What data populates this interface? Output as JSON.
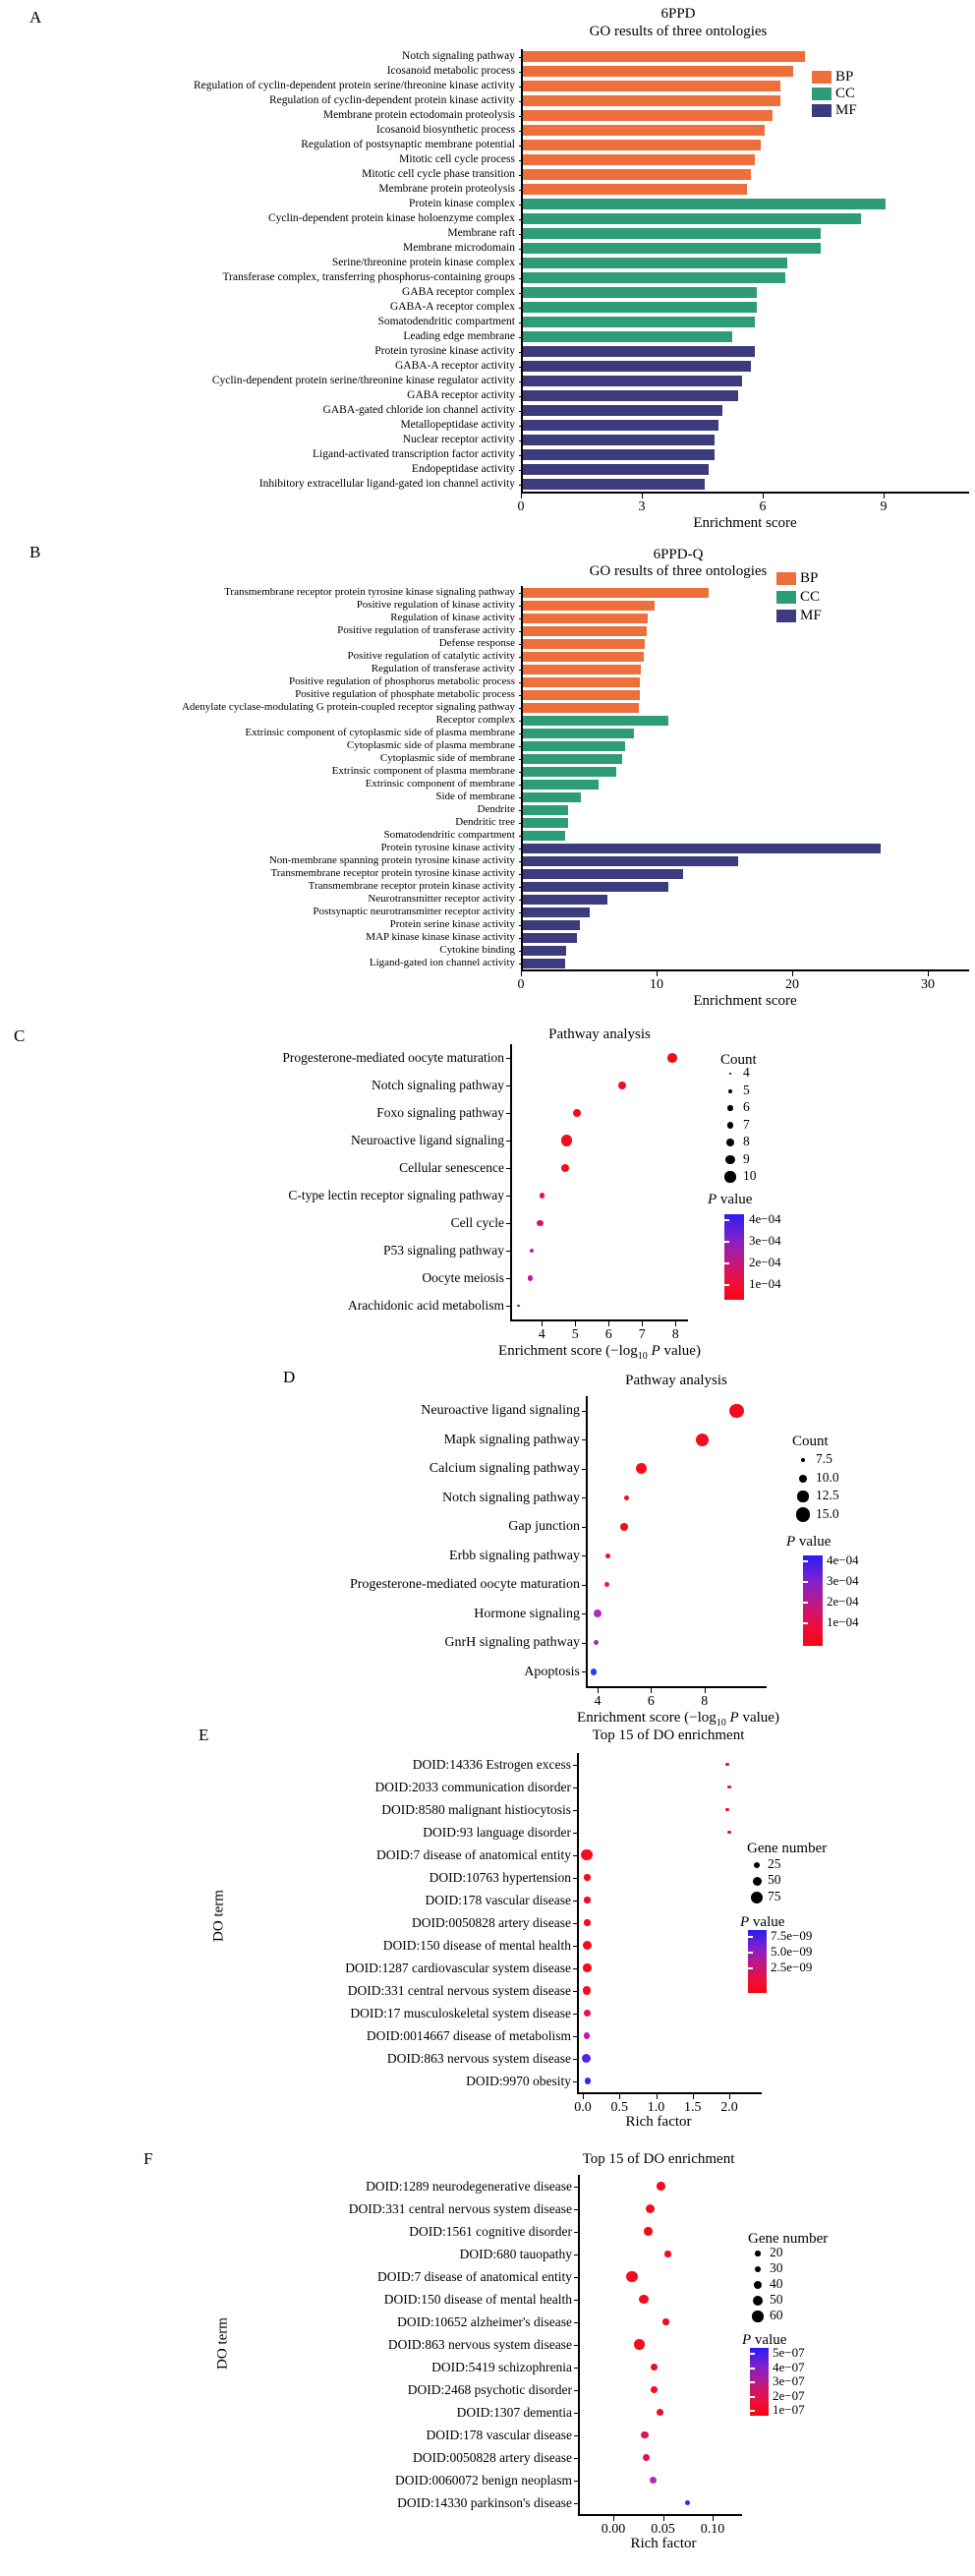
{
  "chart_data": [
    {
      "type": "bar",
      "panel_letter": "A",
      "title": "6PPD",
      "subtitle": "GO results of three ontologies",
      "xlabel": "Enrichment score",
      "xticks": [
        0,
        3,
        6,
        9
      ],
      "xlim": [
        0,
        11.1
      ],
      "legend": [
        {
          "label": "BP",
          "color": "#ED6F3C"
        },
        {
          "label": "CC",
          "color": "#2E9C76"
        },
        {
          "label": "MF",
          "color": "#3B3B7E"
        }
      ],
      "bars": [
        {
          "label": "Notch signaling pathway",
          "value": 7.0,
          "group": "BP"
        },
        {
          "label": "Icosanoid metabolic process",
          "value": 6.7,
          "group": "BP"
        },
        {
          "label": "Regulation of cyclin-dependent protein serine/threonine kinase activity",
          "value": 6.4,
          "group": "BP"
        },
        {
          "label": "Regulation of cyclin-dependent protein kinase activity",
          "value": 6.4,
          "group": "BP"
        },
        {
          "label": "Membrane protein ectodomain proteolysis",
          "value": 6.2,
          "group": "BP"
        },
        {
          "label": "Icosanoid biosynthetic process",
          "value": 6.0,
          "group": "BP"
        },
        {
          "label": "Regulation of postsynaptic membrane potential",
          "value": 5.9,
          "group": "BP"
        },
        {
          "label": "Mitotic cell cycle process",
          "value": 5.75,
          "group": "BP"
        },
        {
          "label": "Mitotic cell cycle phase transition",
          "value": 5.65,
          "group": "BP"
        },
        {
          "label": "Membrane protein proteolysis",
          "value": 5.55,
          "group": "BP"
        },
        {
          "label": "Protein kinase complex",
          "value": 9.0,
          "group": "CC"
        },
        {
          "label": "Cyclin-dependent protein kinase holoenzyme complex",
          "value": 8.4,
          "group": "CC"
        },
        {
          "label": "Membrane raft",
          "value": 7.4,
          "group": "CC"
        },
        {
          "label": "Membrane microdomain",
          "value": 7.4,
          "group": "CC"
        },
        {
          "label": "Serine/threonine protein kinase complex",
          "value": 6.55,
          "group": "CC"
        },
        {
          "label": "Transferase complex, transferring phosphorus-containing groups",
          "value": 6.5,
          "group": "CC"
        },
        {
          "label": "GABA receptor complex",
          "value": 5.8,
          "group": "CC"
        },
        {
          "label": "GABA-A receptor complex",
          "value": 5.8,
          "group": "CC"
        },
        {
          "label": "Somatodendritic compartment",
          "value": 5.75,
          "group": "CC"
        },
        {
          "label": "Leading edge membrane",
          "value": 5.2,
          "group": "CC"
        },
        {
          "label": "Protein tyrosine kinase activity",
          "value": 5.75,
          "group": "MF"
        },
        {
          "label": "GABA-A receptor activity",
          "value": 5.65,
          "group": "MF"
        },
        {
          "label": "Cyclin-dependent protein serine/threonine kinase regulator activity",
          "value": 5.45,
          "group": "MF"
        },
        {
          "label": "GABA receptor activity",
          "value": 5.35,
          "group": "MF"
        },
        {
          "label": "GABA-gated chloride ion channel activity",
          "value": 4.95,
          "group": "MF"
        },
        {
          "label": "Metallopeptidase activity",
          "value": 4.85,
          "group": "MF"
        },
        {
          "label": "Nuclear receptor activity",
          "value": 4.75,
          "group": "MF"
        },
        {
          "label": "Ligand-activated transcription factor activity",
          "value": 4.75,
          "group": "MF"
        },
        {
          "label": "Endopeptidase activity",
          "value": 4.6,
          "group": "MF"
        },
        {
          "label": "Inhibitory extracellular ligand-gated ion channel activity",
          "value": 4.5,
          "group": "MF"
        }
      ]
    },
    {
      "type": "bar",
      "panel_letter": "B",
      "title": "6PPD-Q",
      "subtitle": "GO results of three ontologies",
      "xlabel": "Enrichment score",
      "xticks": [
        0,
        10,
        20,
        30
      ],
      "xlim": [
        0,
        33
      ],
      "legend": [
        {
          "label": "BP",
          "color": "#ED6F3C"
        },
        {
          "label": "CC",
          "color": "#2E9C76"
        },
        {
          "label": "MF",
          "color": "#3B3B7E"
        }
      ],
      "bars": [
        {
          "label": "Transmembrane receptor protein tyrosine kinase signaling pathway",
          "value": 13.7,
          "group": "BP"
        },
        {
          "label": "Positive regulation of kinase activity",
          "value": 9.7,
          "group": "BP"
        },
        {
          "label": "Regulation of kinase activity",
          "value": 9.2,
          "group": "BP"
        },
        {
          "label": "Positive regulation of transferase activity",
          "value": 9.1,
          "group": "BP"
        },
        {
          "label": "Defense response",
          "value": 9.0,
          "group": "BP"
        },
        {
          "label": "Positive regulation of catalytic activity",
          "value": 8.9,
          "group": "BP"
        },
        {
          "label": "Regulation of transferase activity",
          "value": 8.7,
          "group": "BP"
        },
        {
          "label": "Positive regulation of phosphorus metabolic process",
          "value": 8.65,
          "group": "BP"
        },
        {
          "label": "Positive regulation of phosphate metabolic process",
          "value": 8.6,
          "group": "BP"
        },
        {
          "label": "Adenylate cyclase-modulating G protein-coupled receptor signaling pathway",
          "value": 8.55,
          "group": "BP"
        },
        {
          "label": "Receptor complex",
          "value": 10.7,
          "group": "CC"
        },
        {
          "label": "Extrinsic component of cytoplasmic side of plasma membrane",
          "value": 8.2,
          "group": "CC"
        },
        {
          "label": "Cytoplasmic side of plasma membrane",
          "value": 7.5,
          "group": "CC"
        },
        {
          "label": "Cytoplasmic side of membrane",
          "value": 7.3,
          "group": "CC"
        },
        {
          "label": "Extrinsic component of plasma membrane",
          "value": 6.9,
          "group": "CC"
        },
        {
          "label": "Extrinsic component of membrane",
          "value": 5.6,
          "group": "CC"
        },
        {
          "label": "Side of membrane",
          "value": 4.3,
          "group": "CC"
        },
        {
          "label": "Dendrite",
          "value": 3.3,
          "group": "CC"
        },
        {
          "label": "Dendritic tree",
          "value": 3.3,
          "group": "CC"
        },
        {
          "label": "Somatodendritic compartment",
          "value": 3.1,
          "group": "CC"
        },
        {
          "label": "Protein tyrosine kinase activity",
          "value": 26.4,
          "group": "MF"
        },
        {
          "label": "Non-membrane spanning protein tyrosine kinase activity",
          "value": 15.9,
          "group": "MF"
        },
        {
          "label": "Transmembrane receptor protein tyrosine kinase activity",
          "value": 11.8,
          "group": "MF"
        },
        {
          "label": "Transmembrane receptor protein kinase activity",
          "value": 10.7,
          "group": "MF"
        },
        {
          "label": "Neurotransmitter receptor activity",
          "value": 6.2,
          "group": "MF"
        },
        {
          "label": "Postsynaptic neurotransmitter receptor activity",
          "value": 4.9,
          "group": "MF"
        },
        {
          "label": "Protein serine kinase activity",
          "value": 4.2,
          "group": "MF"
        },
        {
          "label": "MAP kinase kinase kinase activity",
          "value": 4.0,
          "group": "MF"
        },
        {
          "label": "Cytokine binding",
          "value": 3.2,
          "group": "MF"
        },
        {
          "label": "Ligand-gated ion channel activity",
          "value": 3.1,
          "group": "MF"
        }
      ]
    },
    {
      "type": "scatter",
      "panel_letter": "C",
      "title": "Pathway analysis",
      "xlabel_pre": "Enrichment score (−log",
      "xlabel_sub": "10",
      "xlabel_p": " P",
      "xlabel_end": " value)",
      "xticks": [
        "4",
        "5",
        "6",
        "7",
        "8"
      ],
      "xlim": [
        3.05,
        8.35
      ],
      "count_legend": {
        "title": "Count",
        "values": [
          "4",
          "5",
          "6",
          "7",
          "8",
          "9",
          "10"
        ]
      },
      "pvalue_legend": {
        "title_p": "P",
        "title_rest": " value",
        "ticks": [
          "4e−04",
          "3e−04",
          "2e−04",
          "1e−04"
        ]
      },
      "points": [
        {
          "label": "Progesterone-mediated oocyte maturation",
          "x": 7.9,
          "count": 9,
          "color": "#F20D1E"
        },
        {
          "label": "Notch signaling pathway",
          "x": 6.4,
          "count": 8,
          "color": "#F20D1E"
        },
        {
          "label": "Foxo signaling pathway",
          "x": 5.05,
          "count": 8,
          "color": "#F20D1E"
        },
        {
          "label": "Neuroactive ligand signaling",
          "x": 4.75,
          "count": 10,
          "color": "#F20D1E"
        },
        {
          "label": "Cellular senescence",
          "x": 4.7,
          "count": 8,
          "color": "#F20D1E"
        },
        {
          "label": "C-type lectin receptor signaling pathway",
          "x": 4.0,
          "count": 6,
          "color": "#E31260"
        },
        {
          "label": "Cell cycle",
          "x": 3.95,
          "count": 7,
          "color": "#E31260"
        },
        {
          "label": "P53 signaling pathway",
          "x": 3.7,
          "count": 5,
          "color": "#C417A4"
        },
        {
          "label": "Oocyte meiosis",
          "x": 3.65,
          "count": 6,
          "color": "#C417A4"
        },
        {
          "label": "Arachidonic acid metabolism",
          "x": 3.3,
          "count": 4,
          "color": "#2A2CF0"
        }
      ]
    },
    {
      "type": "scatter",
      "panel_letter": "D",
      "title": "Pathway analysis",
      "xlabel_pre": "Enrichment score (−log",
      "xlabel_sub": "10",
      "xlabel_p": " P",
      "xlabel_end": " value)",
      "xticks": [
        "4",
        "6",
        "8"
      ],
      "xlim": [
        3.56,
        10.3
      ],
      "count_legend": {
        "title": "Count",
        "values": [
          "7.5",
          "10.0",
          "12.5",
          "15.0"
        ]
      },
      "pvalue_legend": {
        "title_p": "P",
        "title_rest": " value",
        "ticks": [
          "4e−04",
          "3e−04",
          "2e−04",
          "1e−04"
        ]
      },
      "points": [
        {
          "label": "Neuroactive ligand signaling",
          "x": 9.2,
          "count": 15,
          "color": "#F20D1E"
        },
        {
          "label": "Mapk signaling pathway",
          "x": 7.9,
          "count": 14,
          "color": "#F20D1E"
        },
        {
          "label": "Calcium signaling pathway",
          "x": 5.65,
          "count": 12.5,
          "color": "#F20D1E"
        },
        {
          "label": "Notch signaling pathway",
          "x": 5.1,
          "count": 7.5,
          "color": "#F20D1E"
        },
        {
          "label": "Gap junction",
          "x": 5.0,
          "count": 10,
          "color": "#F20D1E"
        },
        {
          "label": "Erbb signaling pathway",
          "x": 4.4,
          "count": 7.5,
          "color": "#F20D1E"
        },
        {
          "label": "Progesterone-mediated oocyte maturation",
          "x": 4.35,
          "count": 7.5,
          "color": "#EE1550"
        },
        {
          "label": "Hormone signaling",
          "x": 4.0,
          "count": 10,
          "color": "#AF2ABE"
        },
        {
          "label": "GnrH signaling pathway",
          "x": 3.93,
          "count": 7.5,
          "color": "#A82BC2"
        },
        {
          "label": "Apoptosis",
          "x": 3.85,
          "count": 9,
          "color": "#2741EB"
        }
      ]
    },
    {
      "type": "scatter",
      "panel_letter": "E",
      "title": "Top 15 of DO enrichment",
      "ylabel": "DO term",
      "xlabel": "Rich factor",
      "xticks": [
        "0.0",
        "0.5",
        "1.0",
        "1.5",
        "2.0"
      ],
      "xlim": [
        -0.08,
        2.45
      ],
      "gene_legend": {
        "title": "Gene number",
        "values": [
          "25",
          "50",
          "75"
        ]
      },
      "pvalue_legend": {
        "title_p": "P",
        "title_rest": " value",
        "ticks": [
          "7.5e−09",
          "5.0e−09",
          "2.5e−09"
        ]
      },
      "points": [
        {
          "label": "DOID:14336 Estrogen excess",
          "x": 1.97,
          "genes": 5,
          "color": "#F20D1E"
        },
        {
          "label": "DOID:2033 communication disorder",
          "x": 2.0,
          "genes": 5,
          "color": "#F20D1E"
        },
        {
          "label": "DOID:8580 malignant histiocytosis",
          "x": 1.97,
          "genes": 5,
          "color": "#F20D1E"
        },
        {
          "label": "DOID:93 language disorder",
          "x": 2.0,
          "genes": 5,
          "color": "#F20D1E"
        },
        {
          "label": "DOID:7 disease of anatomical entity",
          "x": 0.05,
          "genes": 75,
          "color": "#F20D1E"
        },
        {
          "label": "DOID:10763 hypertension",
          "x": 0.06,
          "genes": 25,
          "color": "#F20D1E"
        },
        {
          "label": "DOID:178 vascular disease",
          "x": 0.06,
          "genes": 25,
          "color": "#F20D1E"
        },
        {
          "label": "DOID:0050828 artery disease",
          "x": 0.06,
          "genes": 25,
          "color": "#F20D1E"
        },
        {
          "label": "DOID:150 disease of mental health",
          "x": 0.055,
          "genes": 50,
          "color": "#F20D1E"
        },
        {
          "label": "DOID:1287 cardiovascular system disease",
          "x": 0.06,
          "genes": 45,
          "color": "#F20D1E"
        },
        {
          "label": "DOID:331 central nervous system disease",
          "x": 0.055,
          "genes": 45,
          "color": "#F20D1E"
        },
        {
          "label": "DOID:17 musculoskeletal system disease",
          "x": 0.06,
          "genes": 30,
          "color": "#E8135C"
        },
        {
          "label": "DOID:0014667 disease of metabolism",
          "x": 0.055,
          "genes": 30,
          "color": "#BF19AC"
        },
        {
          "label": "DOID:863 nervous system disease",
          "x": 0.045,
          "genes": 50,
          "color": "#5226DC"
        },
        {
          "label": "DOID:9970 obesity",
          "x": 0.067,
          "genes": 25,
          "color": "#2A2CF0"
        }
      ]
    },
    {
      "type": "scatter",
      "panel_letter": "F",
      "title": "Top 15 of DO enrichment",
      "ylabel": "DO term",
      "xlabel": "Rich factor",
      "xticks": [
        "0.00",
        "0.05",
        "0.10"
      ],
      "xlim": [
        -0.036,
        0.13
      ],
      "gene_legend": {
        "title": "Gene number",
        "values": [
          "20",
          "30",
          "40",
          "50",
          "60"
        ]
      },
      "pvalue_legend": {
        "title_p": "P",
        "title_rest": " value",
        "ticks": [
          "5e−07",
          "4e−07",
          "3e−07",
          "2e−07",
          "1e−07"
        ]
      },
      "points": [
        {
          "label": "DOID:1289 neurodegenerative disease",
          "x": 0.048,
          "genes": 40,
          "color": "#F20D1E"
        },
        {
          "label": "DOID:331 central nervous system disease",
          "x": 0.037,
          "genes": 45,
          "color": "#F20D1E"
        },
        {
          "label": "DOID:1561 cognitive disorder",
          "x": 0.035,
          "genes": 40,
          "color": "#F20D1E"
        },
        {
          "label": "DOID:680 tauopathy",
          "x": 0.055,
          "genes": 25,
          "color": "#F20D1E"
        },
        {
          "label": "DOID:7 disease of anatomical entity",
          "x": 0.019,
          "genes": 60,
          "color": "#F20D1E"
        },
        {
          "label": "DOID:150 disease of mental health",
          "x": 0.031,
          "genes": 50,
          "color": "#F20D1E"
        },
        {
          "label": "DOID:10652 alzheimer's disease",
          "x": 0.053,
          "genes": 25,
          "color": "#F20D1E"
        },
        {
          "label": "DOID:863 nervous system disease",
          "x": 0.026,
          "genes": 55,
          "color": "#F20D1E"
        },
        {
          "label": "DOID:5419 schizophrenia",
          "x": 0.041,
          "genes": 30,
          "color": "#F20D1E"
        },
        {
          "label": "DOID:2468 psychotic disorder",
          "x": 0.041,
          "genes": 30,
          "color": "#F20D1E"
        },
        {
          "label": "DOID:1307 dementia",
          "x": 0.047,
          "genes": 28,
          "color": "#F20D1E"
        },
        {
          "label": "DOID:178 vascular disease",
          "x": 0.032,
          "genes": 35,
          "color": "#DE1158"
        },
        {
          "label": "DOID:0050828 artery disease",
          "x": 0.033,
          "genes": 35,
          "color": "#DE1158"
        },
        {
          "label": "DOID:0060072 benign neoplasm",
          "x": 0.04,
          "genes": 30,
          "color": "#B32BB0"
        },
        {
          "label": "DOID:14330 parkinson's disease",
          "x": 0.075,
          "genes": 18,
          "color": "#2A2CF0"
        }
      ]
    }
  ]
}
